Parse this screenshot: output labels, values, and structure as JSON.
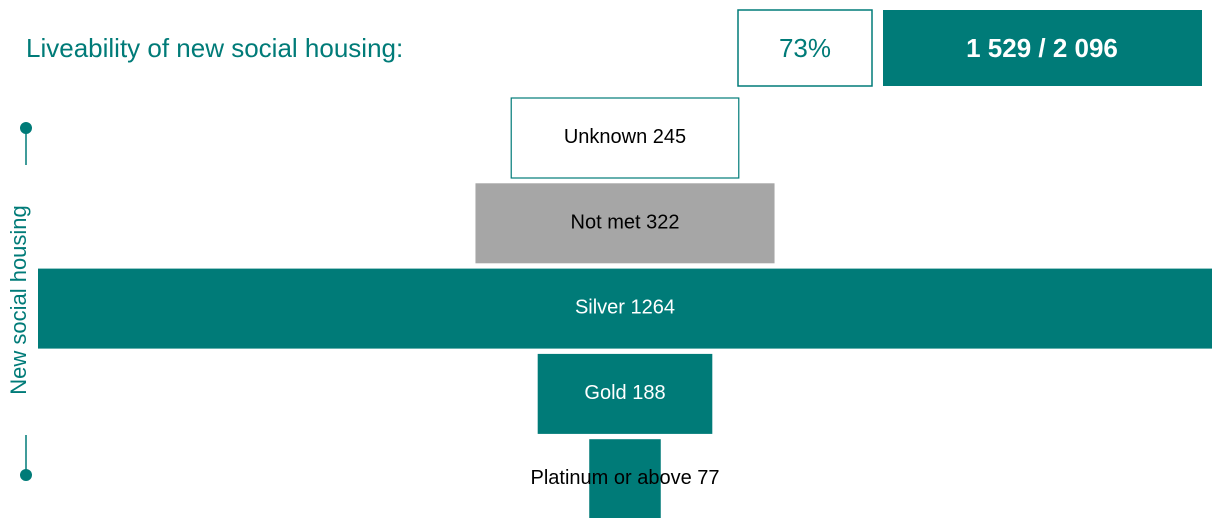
{
  "header": {
    "title": "Liveability of new social housing:",
    "percent": "73%",
    "count": "1 529 / 2 096"
  },
  "chart_data": {
    "type": "funnel",
    "y_label": "New social housing",
    "categories": [
      "Unknown",
      "Not met",
      "Silver",
      "Gold",
      "Platinum or above"
    ],
    "values": [
      245,
      322,
      1264,
      188,
      77
    ],
    "colors": [
      "#ffffff",
      "#a6a6a6",
      "#007b78",
      "#007b78",
      "#007b78"
    ]
  }
}
